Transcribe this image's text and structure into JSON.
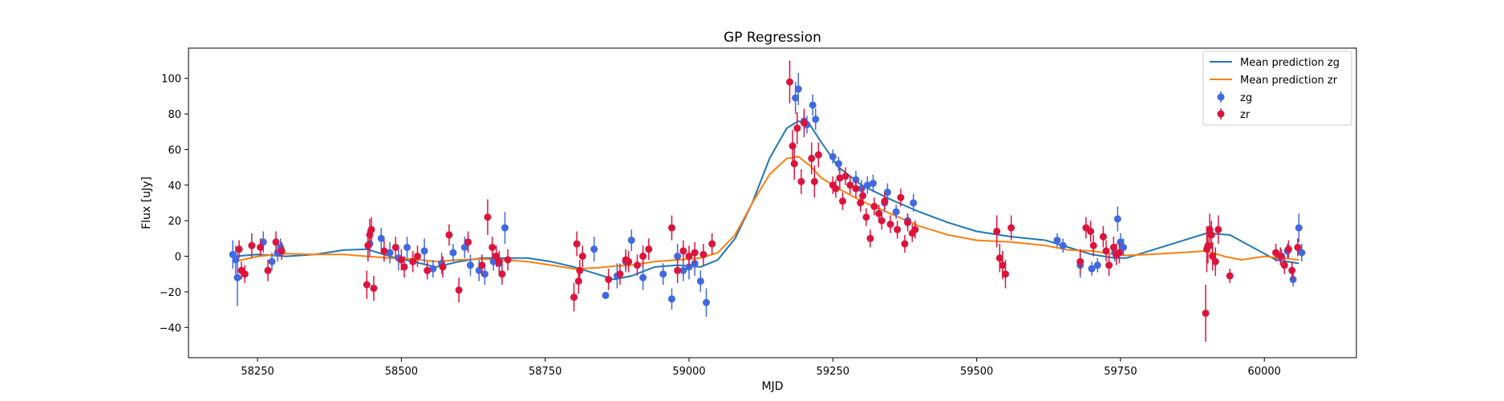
{
  "chart_data": {
    "type": "scatter",
    "title": "GP Regression",
    "xlabel": "MJD",
    "ylabel": "Flux [uJy]",
    "xlim": [
      58130,
      60160
    ],
    "ylim": [
      -57,
      117
    ],
    "xticks": [
      58250,
      58500,
      58750,
      59000,
      59250,
      59500,
      59750,
      60000
    ],
    "yticks": [
      -40,
      -20,
      0,
      20,
      40,
      60,
      80,
      100
    ],
    "grid": false,
    "legend_position": "top-right",
    "lines": [
      {
        "name": "Mean prediction zg",
        "color": "#1f77b4",
        "x": [
          58210,
          58250,
          58300,
          58350,
          58400,
          58440,
          58480,
          58520,
          58560,
          58600,
          58640,
          58680,
          58720,
          58760,
          58800,
          58840,
          58870,
          58900,
          58940,
          58980,
          59020,
          59050,
          59080,
          59110,
          59140,
          59170,
          59190,
          59210,
          59230,
          59260,
          59300,
          59350,
          59400,
          59450,
          59500,
          59560,
          59620,
          59660,
          59700,
          59740,
          59760,
          59800,
          59850,
          59900,
          59940,
          59980,
          60020,
          60060
        ],
        "y": [
          0,
          1,
          0,
          1,
          3.5,
          4,
          0,
          -3,
          -6,
          -3,
          -1,
          -1,
          -1,
          -3,
          -6,
          -10,
          -13,
          -11,
          -6,
          -5,
          -6,
          -2,
          10,
          30,
          55,
          72,
          76,
          74,
          64,
          50,
          40,
          32,
          25,
          19,
          14,
          11,
          9,
          5,
          1,
          -1,
          -1,
          3,
          8,
          13,
          12,
          5,
          -2,
          -4
        ]
      },
      {
        "name": "Mean prediction zr",
        "color": "#ff7f0e",
        "x": [
          58210,
          58250,
          58300,
          58350,
          58400,
          58440,
          58480,
          58520,
          58560,
          58600,
          58640,
          58680,
          58720,
          58760,
          58800,
          58840,
          58870,
          58900,
          58940,
          58980,
          59020,
          59050,
          59080,
          59110,
          59140,
          59170,
          59190,
          59210,
          59230,
          59260,
          59300,
          59350,
          59400,
          59450,
          59500,
          59560,
          59620,
          59660,
          59700,
          59740,
          59760,
          59800,
          59850,
          59900,
          59930,
          59960,
          60000,
          60060
        ],
        "y": [
          -3,
          0,
          1.5,
          1,
          1,
          0,
          -1,
          -1.5,
          -3,
          -2,
          -1.5,
          -2,
          -3,
          -5,
          -7,
          -6.5,
          -5.5,
          -5,
          -3,
          -2,
          -1,
          2,
          12,
          30,
          46,
          55,
          56,
          51,
          44,
          38,
          31,
          24,
          17,
          12,
          9,
          8,
          6,
          3.5,
          3,
          1,
          0.5,
          1,
          2,
          3,
          0,
          -2,
          0,
          -2
        ]
      }
    ],
    "series": [
      {
        "name": "zg",
        "color": "#4169e1",
        "x": [
          58207,
          58212,
          58215,
          58260,
          58275,
          58285,
          58290,
          58445,
          58465,
          58480,
          58495,
          58510,
          58540,
          58555,
          58570,
          58590,
          58610,
          58620,
          58635,
          58645,
          58660,
          58670,
          58680,
          58835,
          58855,
          58875,
          58890,
          58900,
          58920,
          58955,
          58970,
          58980,
          58990,
          59000,
          59010,
          59020,
          59030,
          59185,
          59190,
          59200,
          59205,
          59215,
          59220,
          59250,
          59260,
          59290,
          59300,
          59310,
          59320,
          59340,
          59345,
          59360,
          59380,
          59390,
          59640,
          59650,
          59680,
          59700,
          59710,
          59740,
          59745,
          59750,
          59755,
          60030,
          60040,
          60050,
          60060,
          60065
        ],
        "y": [
          1,
          -2,
          -12,
          8,
          -3,
          2,
          5,
          7,
          10,
          2,
          -1,
          5,
          3,
          -7,
          -4,
          2,
          5,
          -5,
          -8,
          -10,
          -3,
          -4,
          16,
          4,
          -22,
          -11,
          -3,
          9,
          -12,
          -10,
          -24,
          0,
          -8,
          -6,
          -4,
          -14,
          -26,
          89,
          94,
          76,
          74,
          85,
          77,
          56,
          52,
          43,
          38,
          40,
          41,
          30,
          36,
          25,
          20,
          30,
          9,
          6,
          -5,
          -7,
          -5,
          2,
          21,
          8,
          5,
          0,
          3,
          -13,
          16,
          2
        ],
        "err": [
          8,
          8,
          16,
          6,
          5,
          5,
          5,
          7,
          6,
          6,
          7,
          6,
          7,
          5,
          6,
          5,
          6,
          6,
          6,
          6,
          5,
          6,
          9,
          7,
          2,
          7,
          6,
          6,
          7,
          6,
          6,
          7,
          6,
          7,
          7,
          6,
          8,
          9,
          9,
          5,
          5,
          6,
          6,
          4,
          4,
          5,
          5,
          5,
          5,
          5,
          5,
          4,
          4,
          5,
          4,
          4,
          7,
          4,
          4,
          5,
          7,
          5,
          5,
          4,
          4,
          4,
          8,
          5
        ]
      },
      {
        "name": "zr",
        "color": "#dc143c",
        "x": [
          58218,
          58222,
          58228,
          58240,
          58255,
          58268,
          58282,
          58292,
          58440,
          58442,
          58445,
          58448,
          58452,
          58470,
          58490,
          58500,
          58505,
          58520,
          58528,
          58545,
          58572,
          58583,
          58600,
          58616,
          58640,
          58650,
          58658,
          58665,
          58670,
          58675,
          58685,
          58800,
          58805,
          58808,
          58810,
          58815,
          58860,
          58880,
          58890,
          58895,
          58910,
          58920,
          58930,
          58970,
          58980,
          58990,
          59000,
          59010,
          59025,
          59040,
          59175,
          59180,
          59183,
          59188,
          59195,
          59200,
          59213,
          59218,
          59225,
          59250,
          59255,
          59262,
          59267,
          59272,
          59280,
          59290,
          59298,
          59302,
          59308,
          59315,
          59322,
          59330,
          59335,
          59340,
          59350,
          59362,
          59368,
          59375,
          59380,
          59388,
          59393,
          59535,
          59540,
          59545,
          59550,
          59560,
          59680,
          59690,
          59698,
          59703,
          59720,
          59725,
          59730,
          59738,
          59743,
          59748,
          59898,
          59900,
          59902,
          59905,
          59908,
          59910,
          59915,
          59920,
          59940,
          60020,
          60028,
          60035,
          60042,
          60048,
          60058
        ],
        "y": [
          4,
          -8,
          -10,
          6,
          5,
          -8,
          8,
          3,
          -16,
          6,
          12,
          15,
          -18,
          3,
          5,
          -2,
          -6,
          -3,
          0,
          -8,
          -6,
          12,
          -19,
          8,
          -5,
          22,
          5,
          0,
          -3,
          -10,
          -2,
          -23,
          7,
          -14,
          -8,
          0,
          -13,
          -10,
          -2,
          -3,
          -5,
          0,
          4,
          16,
          -8,
          3,
          0,
          2,
          1,
          7,
          98,
          62,
          52,
          72,
          42,
          75,
          55,
          42,
          57,
          40,
          38,
          44,
          31,
          45,
          40,
          38,
          30,
          34,
          22,
          10,
          28,
          24,
          20,
          31,
          18,
          15,
          33,
          7,
          19,
          13,
          15,
          14,
          -1,
          -5,
          -10,
          16,
          -3,
          16,
          14,
          6,
          11,
          3,
          -5,
          5,
          1,
          2,
          -32,
          4,
          6,
          15,
          12,
          0,
          -3,
          15,
          -11,
          2,
          0,
          -5,
          4,
          -8,
          5
        ],
        "err": [
          5,
          5,
          5,
          7,
          5,
          6,
          6,
          5,
          8,
          9,
          9,
          7,
          7,
          6,
          6,
          6,
          6,
          6,
          6,
          5,
          6,
          6,
          7,
          6,
          6,
          10,
          6,
          6,
          6,
          6,
          6,
          8,
          7,
          7,
          6,
          6,
          6,
          6,
          6,
          6,
          6,
          6,
          6,
          7,
          7,
          6,
          6,
          6,
          6,
          6,
          12,
          9,
          9,
          9,
          7,
          8,
          9,
          9,
          7,
          5,
          5,
          6,
          5,
          5,
          5,
          5,
          5,
          5,
          5,
          5,
          5,
          5,
          5,
          5,
          5,
          5,
          5,
          5,
          5,
          5,
          5,
          9,
          8,
          8,
          8,
          7,
          7,
          6,
          6,
          6,
          6,
          6,
          6,
          6,
          6,
          6,
          16,
          13,
          10,
          9,
          8,
          8,
          8,
          8,
          4,
          5,
          5,
          5,
          5,
          5,
          5
        ]
      }
    ]
  }
}
